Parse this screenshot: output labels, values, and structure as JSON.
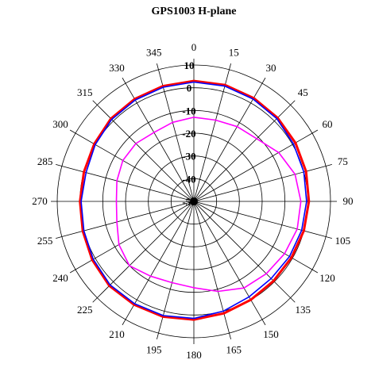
{
  "chart_data": {
    "type": "polar-line",
    "title": "GPS1003  H-plane",
    "angle_ticks": [
      "0",
      "15",
      "30",
      "45",
      "60",
      "75",
      "90",
      "105",
      "120",
      "135",
      "150",
      "165",
      "180",
      "195",
      "210",
      "225",
      "240",
      "255",
      "270",
      "285",
      "300",
      "315",
      "330",
      "345"
    ],
    "radial_ticks": [
      "10",
      "0",
      "-10",
      "-20",
      "-30",
      "-40",
      "-50"
    ],
    "r_range": [
      -50,
      10
    ],
    "grid": true,
    "series": [
      {
        "color": "#ff0000",
        "angles": [
          0,
          15,
          30,
          45,
          60,
          75,
          90,
          105,
          120,
          135,
          150,
          165,
          180,
          195,
          210,
          225,
          240,
          255,
          270,
          285,
          300,
          315,
          330,
          345
        ],
        "values": [
          3,
          3,
          2.5,
          2,
          1.5,
          1,
          0.5,
          0,
          -0.5,
          -0.5,
          0,
          1,
          2,
          2.5,
          2.5,
          2.5,
          1.5,
          0.5,
          0,
          0,
          0.5,
          1.5,
          2,
          2.5
        ]
      },
      {
        "color": "#0000ff",
        "angles": [
          0,
          15,
          30,
          45,
          60,
          75,
          90,
          105,
          120,
          135,
          150,
          165,
          180,
          195,
          210,
          225,
          240,
          255,
          270,
          285,
          300,
          315,
          330,
          345
        ],
        "values": [
          2.5,
          2.5,
          2,
          1.5,
          0.5,
          0,
          -0.5,
          -1,
          -1.5,
          -2,
          -1.5,
          0,
          1.5,
          2,
          2,
          2,
          1,
          0,
          -0.5,
          -1,
          0,
          1,
          1.5,
          2
        ]
      },
      {
        "color": "#ff00ff",
        "angles": [
          0,
          15,
          30,
          45,
          60,
          75,
          90,
          105,
          120,
          135,
          150,
          165,
          180,
          195,
          210,
          225,
          240,
          255,
          270,
          285,
          300,
          315,
          330,
          345
        ],
        "values": [
          -13,
          -13,
          -12,
          -11,
          -7,
          -4,
          -3,
          -3,
          -4,
          -5,
          -6,
          -9,
          -12,
          -13,
          -12,
          -10,
          -12,
          -15,
          -16,
          -15,
          -14,
          -14,
          -15,
          -14
        ]
      }
    ]
  }
}
